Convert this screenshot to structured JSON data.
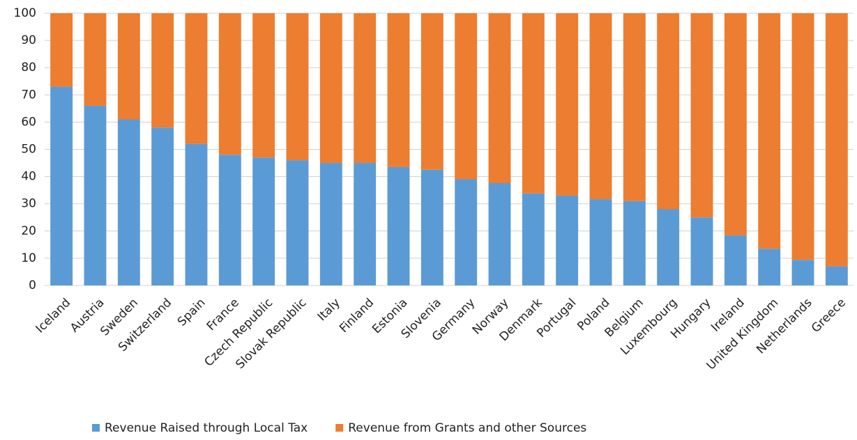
{
  "chart_data": {
    "type": "stacked_bar",
    "categories": [
      "Iceland",
      "Austria",
      "Sweden",
      "Switzerland",
      "Spain",
      "France",
      "Czech Republic",
      "Slovak Republic",
      "Italy",
      "Finland",
      "Estonia",
      "Slovenia",
      "Germany",
      "Norway",
      "Denmark",
      "Portugal",
      "Poland",
      "Belgium",
      "Luxembourg",
      "Hungary",
      "Ireland",
      "United Kingdom",
      "Netherlands",
      "Greece"
    ],
    "series": [
      {
        "name": "Revenue Raised through Local Tax",
        "color": "#5b9bd5",
        "values": [
          73,
          66,
          61,
          58,
          52,
          48,
          47,
          46,
          45,
          45,
          43.5,
          42.5,
          39,
          37.6,
          33.8,
          33,
          31.7,
          31,
          28,
          25,
          18.4,
          13.5,
          9.4,
          7
        ]
      },
      {
        "name": "Revenue from Grants and other Sources",
        "color": "#ed7d31",
        "values": [
          27,
          34,
          39,
          42,
          48,
          52,
          53,
          54,
          55,
          55,
          56.5,
          57.5,
          61,
          62.4,
          66.2,
          67,
          68.3,
          69,
          72,
          75,
          81.6,
          86.5,
          90.6,
          93
        ]
      }
    ],
    "ylim": [
      0,
      100
    ],
    "yticks": [
      0,
      10,
      20,
      30,
      40,
      50,
      60,
      70,
      80,
      90,
      100
    ],
    "grid": true,
    "legend": "bottom"
  }
}
